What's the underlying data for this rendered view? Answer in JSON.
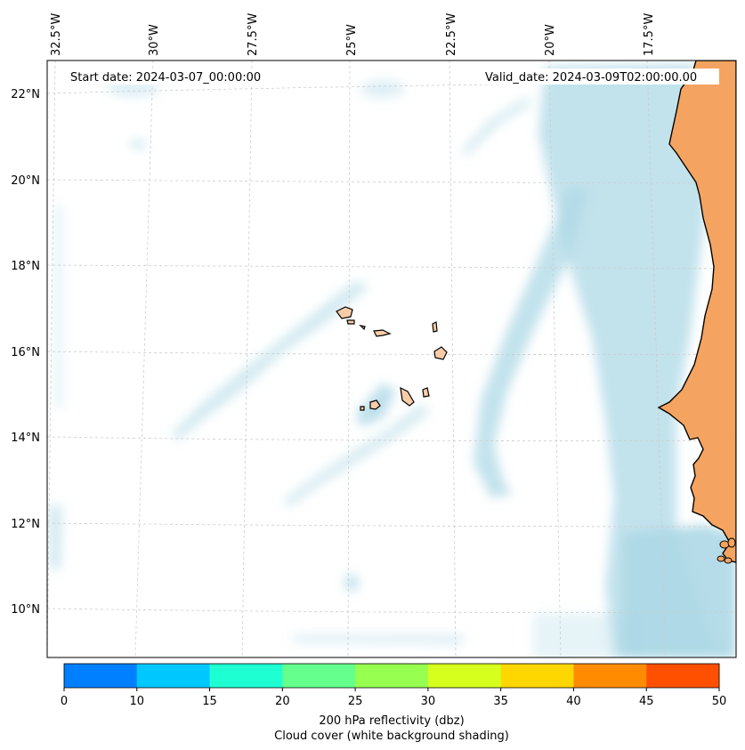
{
  "map": {
    "start_date": "Start date: 2024-03-07_00:00:00",
    "valid_date": "Valid_date: 2024-03-09T02:00:00.00",
    "lon_labels": [
      "32.5°W",
      "30°W",
      "27.5°W",
      "25°W",
      "22.5°W",
      "20°W",
      "17.5°W"
    ],
    "lat_labels": [
      "22°N",
      "20°N",
      "18°N",
      "16°N",
      "14°N",
      "12°N",
      "10°N"
    ],
    "land_color": "#f4a460",
    "cloud_color": "#add8e6",
    "features": [
      "Cape Verde islands",
      "West African coast",
      "cloud bands"
    ]
  },
  "colorbar": {
    "ticks": [
      "0",
      "10",
      "15",
      "20",
      "25",
      "30",
      "35",
      "40",
      "45",
      "50"
    ],
    "colors": [
      "#0080ff",
      "#00c8ff",
      "#1effd2",
      "#64ff8c",
      "#96ff50",
      "#d7ff1e",
      "#ffd700",
      "#ff8c00",
      "#ff5000"
    ],
    "label_line1": "200 hPa reflectivity (dbz)",
    "label_line2": "Cloud cover (white background shading)"
  }
}
